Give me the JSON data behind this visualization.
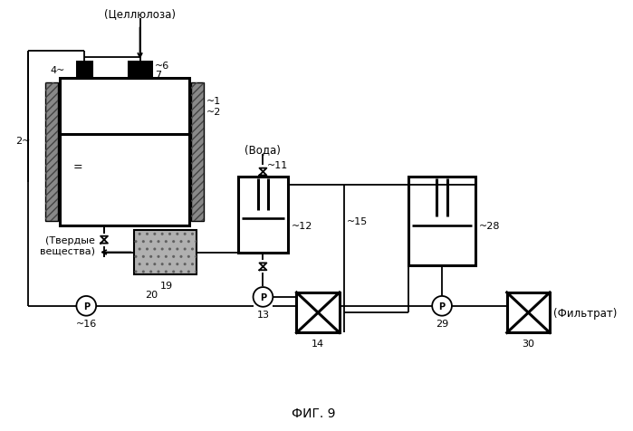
{
  "title": "ФИГ. 9",
  "background_color": "#ffffff",
  "text_color": "#000000",
  "labels": {
    "cellulose": "(Целлюлоза)",
    "water": "(Вода)",
    "solids": "(Твердые\nвещества)",
    "filtrate": "(Фильтрат)"
  },
  "tilde": "~"
}
